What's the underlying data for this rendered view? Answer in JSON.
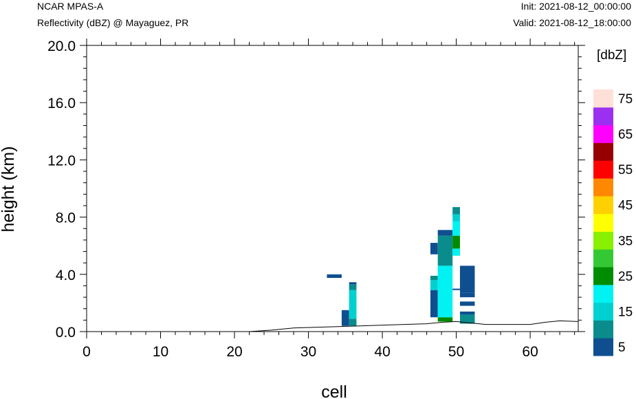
{
  "header": {
    "title_left": "NCAR MPAS-A",
    "subtitle_left": "Reflectivity (dBZ) @ Mayaguez, PR",
    "init": "Init: 2021-08-12_00:00:00",
    "valid": "Valid: 2021-08-12_18:00:00"
  },
  "chart_data": {
    "type": "heatmap",
    "xlabel": "cell",
    "ylabel": "height (km)",
    "xlim": [
      0,
      66.5
    ],
    "ylim": [
      0,
      20
    ],
    "xticks": [
      0,
      10,
      20,
      30,
      40,
      50,
      60
    ],
    "xtick_labels": [
      "0",
      "10",
      "20",
      "30",
      "40",
      "50",
      "60"
    ],
    "yticks": [
      0,
      4,
      8,
      12,
      16,
      20
    ],
    "ytick_labels": [
      "0.0",
      "4.0",
      "8.0",
      "12.0",
      "16.0",
      "20.0"
    ],
    "colorbar": {
      "unit_label": "[dbZ]",
      "levels": [
        5,
        10,
        15,
        20,
        25,
        30,
        35,
        40,
        45,
        50,
        55,
        60,
        65,
        70,
        75
      ],
      "labels": [
        "5",
        "15",
        "25",
        "35",
        "45",
        "55",
        "65",
        "75"
      ],
      "colors": [
        "#0f4f8f",
        "#0a8c8c",
        "#00d0d0",
        "#00f2f2",
        "#008c00",
        "#34c934",
        "#88f000",
        "#ffff00",
        "#ffd000",
        "#ff8800",
        "#ff0000",
        "#960000",
        "#ff00ff",
        "#9b30f0",
        "#ffe0d8"
      ]
    },
    "terrain": [
      [
        0,
        0
      ],
      [
        22,
        0
      ],
      [
        25,
        0.1
      ],
      [
        28,
        0.25
      ],
      [
        31,
        0.3
      ],
      [
        34,
        0.35
      ],
      [
        37,
        0.4
      ],
      [
        40,
        0.45
      ],
      [
        43,
        0.5
      ],
      [
        46,
        0.55
      ],
      [
        48,
        0.65
      ],
      [
        50,
        0.7
      ],
      [
        52,
        0.6
      ],
      [
        54,
        0.5
      ],
      [
        57,
        0.5
      ],
      [
        60,
        0.5
      ],
      [
        62,
        0.65
      ],
      [
        64,
        0.75
      ],
      [
        66.5,
        0.7
      ]
    ],
    "cells": [
      {
        "x": [
          32.5,
          34.5
        ],
        "y": [
          3.75,
          4.0
        ],
        "dbz": 5
      },
      {
        "x": [
          34.5,
          35.5
        ],
        "y": [
          0.4,
          1.5
        ],
        "dbz": 5
      },
      {
        "x": [
          35.5,
          36.5
        ],
        "y": [
          0.4,
          0.9
        ],
        "dbz": 10
      },
      {
        "x": [
          35.5,
          36.5
        ],
        "y": [
          0.9,
          2.9
        ],
        "dbz": 15
      },
      {
        "x": [
          35.5,
          36.5
        ],
        "y": [
          2.9,
          3.3
        ],
        "dbz": 10
      },
      {
        "x": [
          35.5,
          36.5
        ],
        "y": [
          3.3,
          3.45
        ],
        "dbz": 5
      },
      {
        "x": [
          46.5,
          47.5
        ],
        "y": [
          1.0,
          2.9
        ],
        "dbz": 5
      },
      {
        "x": [
          46.5,
          47.5
        ],
        "y": [
          2.9,
          3.6
        ],
        "dbz": 15
      },
      {
        "x": [
          46.5,
          47.5
        ],
        "y": [
          3.6,
          3.9
        ],
        "dbz": 10
      },
      {
        "x": [
          46.5,
          47.5
        ],
        "y": [
          5.4,
          6.2
        ],
        "dbz": 5
      },
      {
        "x": [
          47.5,
          49.5
        ],
        "y": [
          0.7,
          1.0
        ],
        "dbz": 25
      },
      {
        "x": [
          47.5,
          49.5
        ],
        "y": [
          1.0,
          4.6
        ],
        "dbz": 20
      },
      {
        "x": [
          47.5,
          49.5
        ],
        "y": [
          4.6,
          6.7
        ],
        "dbz": 10
      },
      {
        "x": [
          47.5,
          49.5
        ],
        "y": [
          6.7,
          7.1
        ],
        "dbz": 5
      },
      {
        "x": [
          49.5,
          50.5
        ],
        "y": [
          2.9,
          3.0
        ],
        "dbz": 5
      },
      {
        "x": [
          49.5,
          50.5
        ],
        "y": [
          5.3,
          5.8
        ],
        "dbz": 20
      },
      {
        "x": [
          49.5,
          50.5
        ],
        "y": [
          5.8,
          6.7
        ],
        "dbz": 25
      },
      {
        "x": [
          49.5,
          50.5
        ],
        "y": [
          6.7,
          7.7
        ],
        "dbz": 20
      },
      {
        "x": [
          49.5,
          50.5
        ],
        "y": [
          7.7,
          8.2
        ],
        "dbz": 15
      },
      {
        "x": [
          49.5,
          50.5
        ],
        "y": [
          8.2,
          8.7
        ],
        "dbz": 10
      },
      {
        "x": [
          50.5,
          52.5
        ],
        "y": [
          0.55,
          1.2
        ],
        "dbz": 10
      },
      {
        "x": [
          50.5,
          52.5
        ],
        "y": [
          1.2,
          1.4
        ],
        "dbz": 5
      },
      {
        "x": [
          50.5,
          52.5
        ],
        "y": [
          1.8,
          2.1
        ],
        "dbz": 5
      },
      {
        "x": [
          50.5,
          52.5
        ],
        "y": [
          2.4,
          2.7
        ],
        "dbz": 5
      },
      {
        "x": [
          50.5,
          52.5
        ],
        "y": [
          2.7,
          4.6
        ],
        "dbz": 5
      }
    ]
  }
}
